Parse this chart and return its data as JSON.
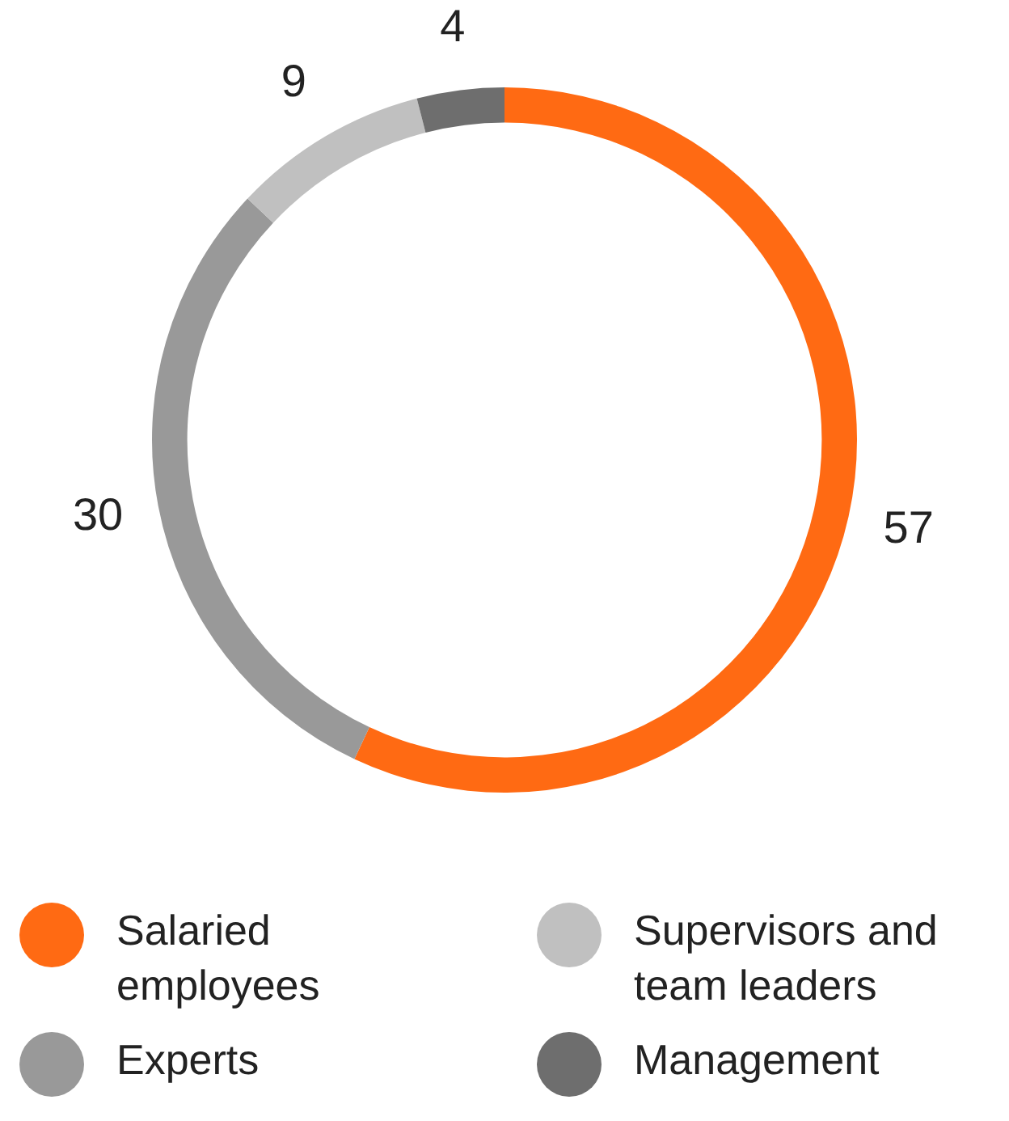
{
  "chart_data": {
    "type": "donut",
    "categories": [
      "Salaried employees",
      "Experts",
      "Supervisors and team leaders",
      "Management"
    ],
    "values": [
      57,
      30,
      9,
      4
    ],
    "colors": [
      "#ff6a13",
      "#999999",
      "#c0c0c0",
      "#6e6e6e"
    ],
    "data_labels": true,
    "legend": "bottom"
  }
}
